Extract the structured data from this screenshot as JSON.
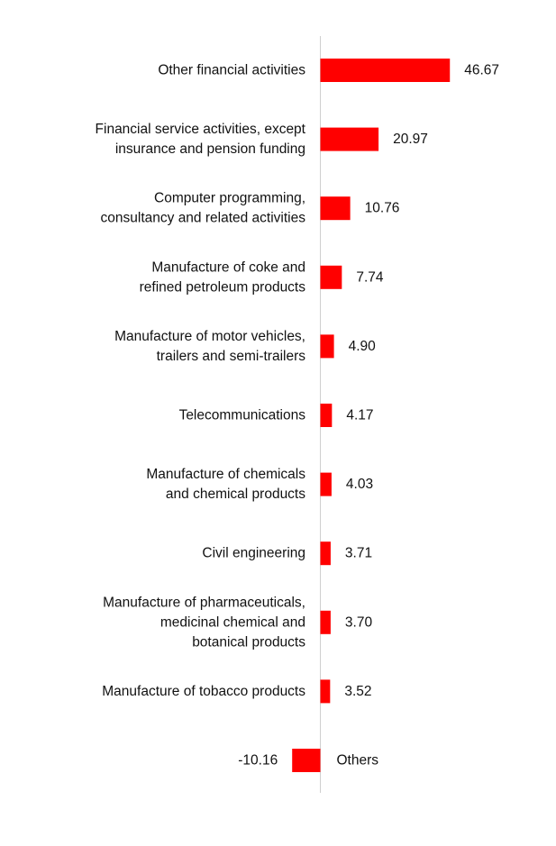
{
  "chart_data": {
    "type": "bar",
    "orientation": "horizontal",
    "title": "",
    "xlabel": "",
    "ylabel": "",
    "grid": false,
    "legend": "none",
    "bar_color": "#ff0000",
    "categories": [
      [
        "Other financial activities"
      ],
      [
        "Financial service activities, except",
        "insurance and pension funding"
      ],
      [
        "Computer programming,",
        "consultancy and related activities"
      ],
      [
        "Manufacture of coke and",
        "refined petroleum products"
      ],
      [
        "Manufacture of motor vehicles,",
        "trailers and semi-trailers"
      ],
      [
        "Telecommunications"
      ],
      [
        "Manufacture of chemicals",
        "and chemical products"
      ],
      [
        "Civil engineering"
      ],
      [
        "Manufacture of pharmaceuticals,",
        "medicinal chemical and",
        "botanical products"
      ],
      [
        "Manufacture of tobacco products"
      ],
      [
        "Others"
      ]
    ],
    "values": [
      46.67,
      20.97,
      10.76,
      7.74,
      4.9,
      4.17,
      4.03,
      3.71,
      3.7,
      3.52,
      -10.16
    ],
    "value_labels": [
      "46.67",
      "20.97",
      "10.76",
      "7.74",
      "4.90",
      "4.17",
      "4.03",
      "3.71",
      "3.70",
      "3.52",
      "-10.16"
    ]
  }
}
